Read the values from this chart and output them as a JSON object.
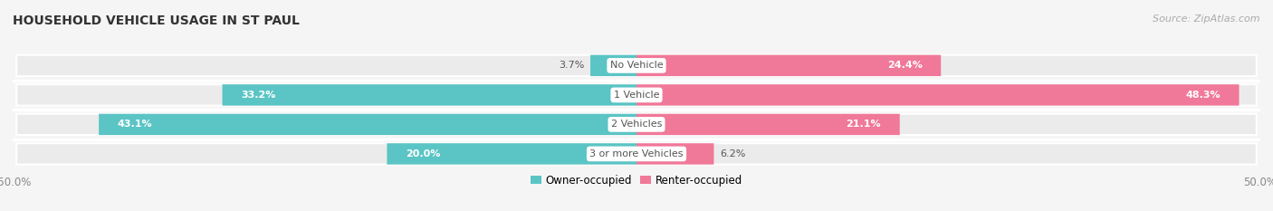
{
  "title": "HOUSEHOLD VEHICLE USAGE IN ST PAUL",
  "source": "Source: ZipAtlas.com",
  "categories": [
    "No Vehicle",
    "1 Vehicle",
    "2 Vehicles",
    "3 or more Vehicles"
  ],
  "owner_values": [
    3.7,
    33.2,
    43.1,
    20.0
  ],
  "renter_values": [
    24.4,
    48.3,
    21.1,
    6.2
  ],
  "owner_color": "#5bc4c4",
  "renter_color": "#f07898",
  "row_bg_color": "#ebebeb",
  "owner_label": "Owner-occupied",
  "renter_label": "Renter-occupied",
  "xlim_left": -50,
  "xlim_right": 50,
  "title_fontsize": 10,
  "source_fontsize": 8,
  "value_fontsize": 8,
  "category_fontsize": 8,
  "legend_fontsize": 8.5,
  "bar_height": 0.72,
  "background_color": "#f5f5f5",
  "row_sep_color": "#ffffff"
}
